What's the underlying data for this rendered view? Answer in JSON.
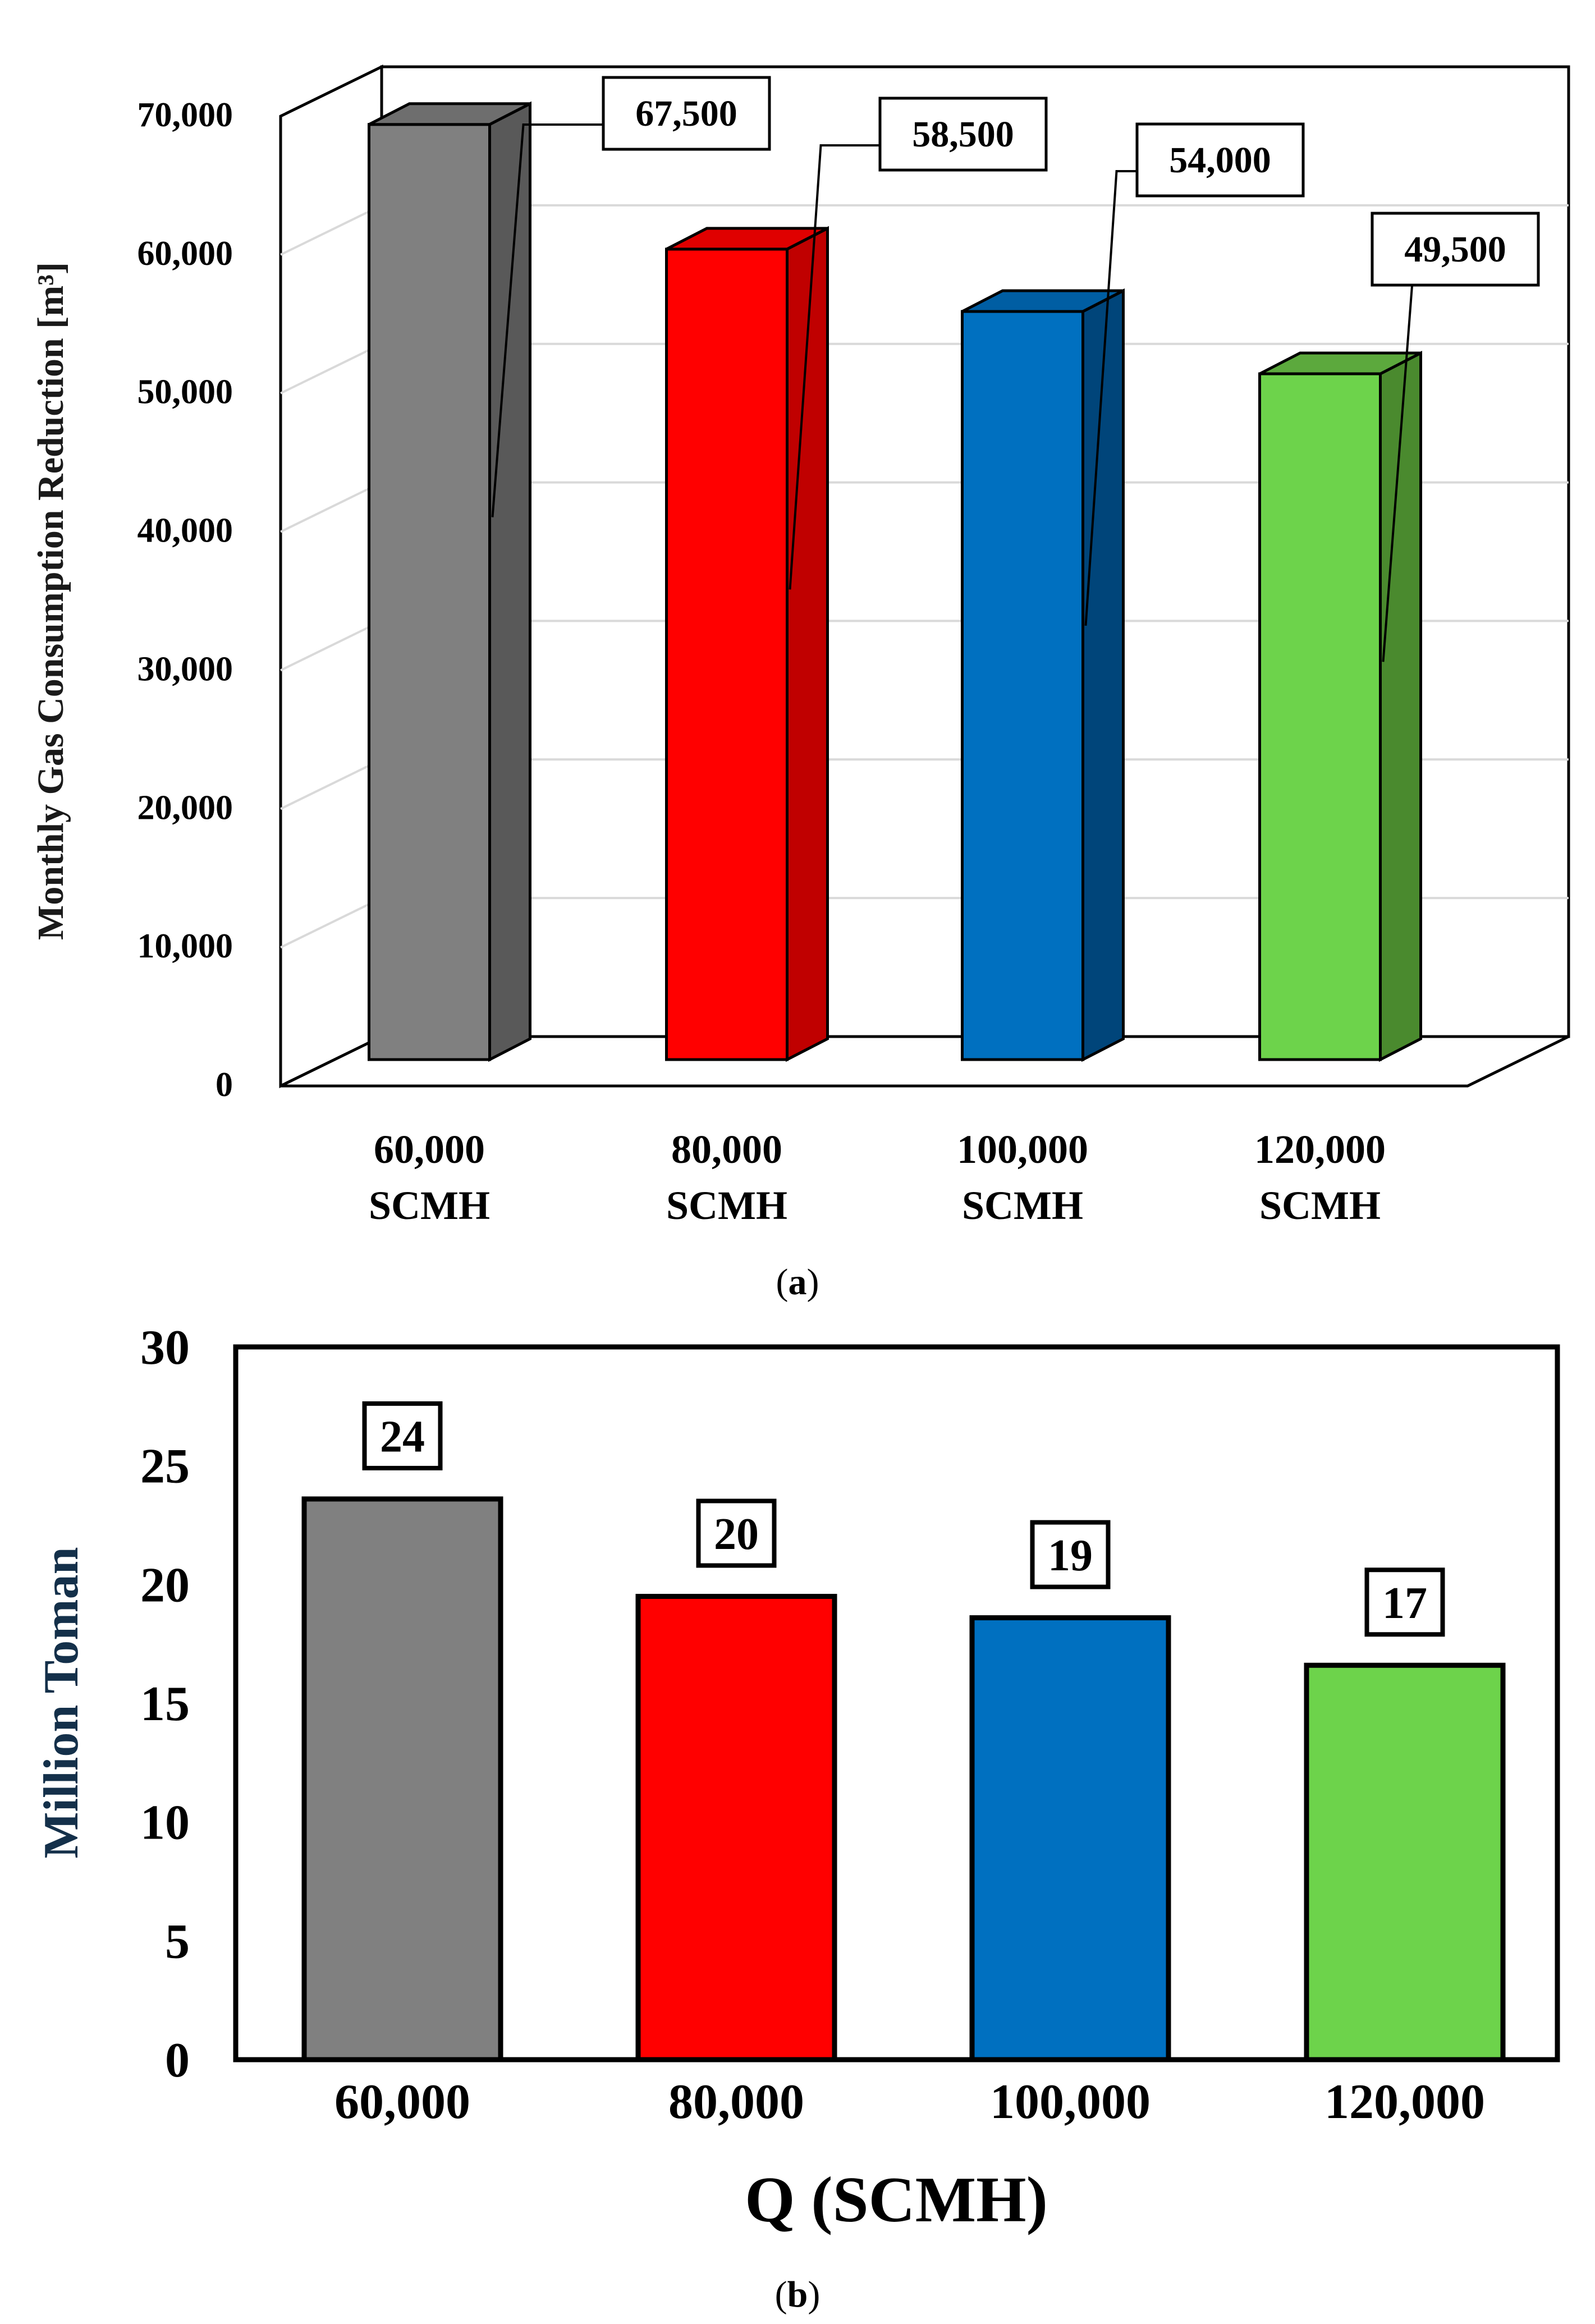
{
  "colors": {
    "gray": "#808080",
    "gray_dark": "#595959",
    "gray_top": "#6e6e6e",
    "red": "#ff0000",
    "red_dark": "#c00000",
    "red_top": "#e00000",
    "blue": "#0070c0",
    "blue_dark": "#00457a",
    "blue_top": "#005ea3",
    "green": "#6dd34b",
    "green_dark": "#4a8a2e",
    "green_top": "#5ca93d",
    "ylabel_b": "#14304a",
    "grid": "#d9d9d9"
  },
  "chart_data": [
    {
      "type": "bar",
      "panel": "(a)",
      "panel_open": "(",
      "panel_letter": "a",
      "panel_close": ")",
      "style": "3d",
      "categories": [
        {
          "line1": "60,000",
          "line2": "SCMH"
        },
        {
          "line1": "80,000",
          "line2": "SCMH"
        },
        {
          "line1": "100,000",
          "line2": "SCMH"
        },
        {
          "line1": "120,000",
          "line2": "SCMH"
        }
      ],
      "values": [
        67500,
        58500,
        54000,
        49500
      ],
      "data_labels": [
        "67,500",
        "58,500",
        "54,000",
        "49,500"
      ],
      "bar_colors": [
        "gray",
        "red",
        "blue",
        "green"
      ],
      "ylabel": "Monthly Gas Consumption Reduction [m³]",
      "ylim": [
        0,
        70000
      ],
      "yticks": [
        0,
        10000,
        20000,
        30000,
        40000,
        50000,
        60000,
        70000
      ],
      "ytick_labels": [
        "0",
        "10,000",
        "20,000",
        "30,000",
        "40,000",
        "50,000",
        "60,000",
        "70,000"
      ],
      "grid": true
    },
    {
      "type": "bar",
      "panel": "(b)",
      "panel_open": "(",
      "panel_letter": "b",
      "panel_close": ")",
      "style": "2d",
      "categories": [
        "60,000",
        "80,000",
        "100,000",
        "120,000"
      ],
      "values": [
        23.6,
        19.5,
        18.6,
        16.6
      ],
      "data_labels": [
        "24",
        "20",
        "19",
        "17"
      ],
      "bar_colors": [
        "gray",
        "red",
        "blue",
        "green"
      ],
      "xlabel": "Q (SCMH)",
      "ylabel": "Million Toman",
      "ylim": [
        0,
        30
      ],
      "yticks": [
        0,
        5,
        10,
        15,
        20,
        25,
        30
      ],
      "ytick_labels": [
        "0",
        "5",
        "10",
        "15",
        "20",
        "25",
        "30"
      ],
      "grid": false
    }
  ]
}
